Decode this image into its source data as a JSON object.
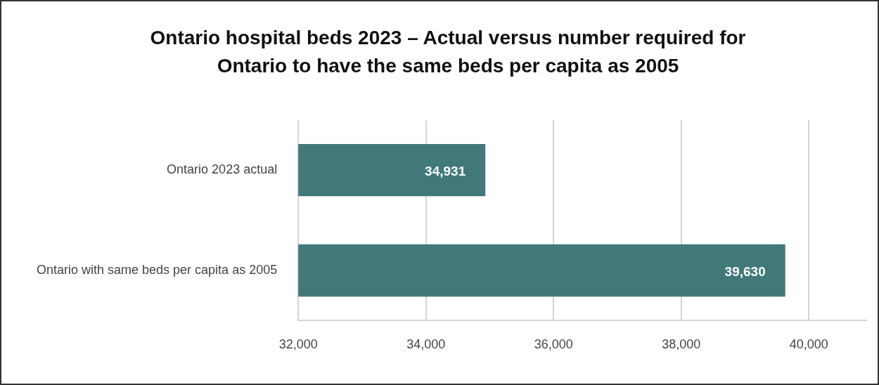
{
  "chart_data": {
    "type": "bar",
    "orientation": "horizontal",
    "title": "Ontario hospital beds 2023 – Actual versus number required for Ontario to  have the same beds per capita as 2005",
    "categories": [
      "Ontario 2023 actual",
      "Ontario with same beds per capita as 2005"
    ],
    "values": [
      34931,
      39630
    ],
    "value_labels": [
      "34,931",
      "39,630"
    ],
    "color": "#41797a",
    "xlim": [
      32000,
      40900
    ],
    "xticks": [
      {
        "value": 32000,
        "label": "32,000"
      },
      {
        "value": 34000,
        "label": "34,000"
      },
      {
        "value": 36000,
        "label": "36,000"
      },
      {
        "value": 38000,
        "label": "38,000"
      },
      {
        "value": 40000,
        "label": "40,000"
      }
    ],
    "grid": "x",
    "legend": false
  }
}
